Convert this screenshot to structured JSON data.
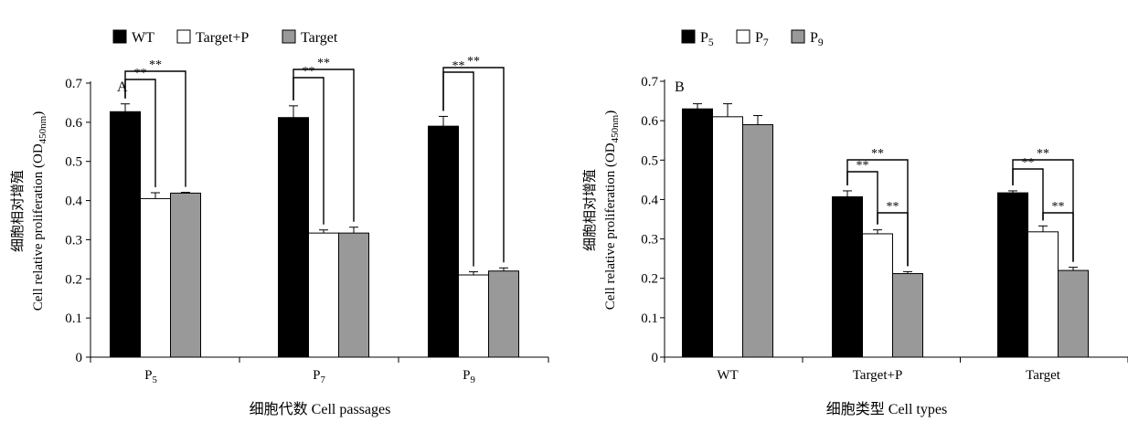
{
  "chart_data": [
    {
      "type": "bar",
      "panel_label": "A",
      "legend": [
        "WT",
        "Target+P",
        "Target"
      ],
      "categories": [
        {
          "base": "P",
          "sub": "5"
        },
        {
          "base": "P",
          "sub": "7"
        },
        {
          "base": "P",
          "sub": "9"
        }
      ],
      "series": [
        {
          "name": "WT",
          "color": "#000000",
          "values": [
            0.627,
            0.612,
            0.59
          ],
          "errors": [
            0.02,
            0.03,
            0.025
          ]
        },
        {
          "name": "Target+P",
          "color": "#ffffff",
          "values": [
            0.405,
            0.317,
            0.21
          ],
          "errors": [
            0.015,
            0.008,
            0.008
          ]
        },
        {
          "name": "Target",
          "color": "#999999",
          "values": [
            0.419,
            0.317,
            0.22
          ],
          "errors": [
            0.002,
            0.015,
            0.008
          ]
        }
      ],
      "ylabel_cn": "细胞相对增殖",
      "ylabel_en": "Cell relative proliferation (OD",
      "ylabel_sub": "450nm",
      "ylabel_end": ")",
      "xlabel": "细胞代数 Cell passages",
      "ylim": [
        0,
        0.7
      ],
      "yticks": [
        "0",
        "0.1",
        "0.2",
        "0.3",
        "0.4",
        "0.5",
        "0.6",
        "0.7"
      ],
      "significance": [
        {
          "category": 0,
          "from": 0,
          "to": 1,
          "label": "**"
        },
        {
          "category": 0,
          "from": 0,
          "to": 2,
          "label": "**"
        },
        {
          "category": 1,
          "from": 0,
          "to": 1,
          "label": "**"
        },
        {
          "category": 1,
          "from": 0,
          "to": 2,
          "label": "**"
        },
        {
          "category": 2,
          "from": 0,
          "to": 1,
          "label": "**"
        },
        {
          "category": 2,
          "from": 0,
          "to": 2,
          "label": "**"
        }
      ]
    },
    {
      "type": "bar",
      "panel_label": "B",
      "legend": [
        {
          "base": "P",
          "sub": "5"
        },
        {
          "base": "P",
          "sub": "7"
        },
        {
          "base": "P",
          "sub": "9"
        }
      ],
      "categories": [
        {
          "base": "WT",
          "sub": ""
        },
        {
          "base": "Target+P",
          "sub": ""
        },
        {
          "base": "Target",
          "sub": ""
        }
      ],
      "series": [
        {
          "name": "P5",
          "color": "#000000",
          "values": [
            0.63,
            0.407,
            0.417
          ],
          "errors": [
            0.013,
            0.015,
            0.005
          ]
        },
        {
          "name": "P7",
          "color": "#ffffff",
          "values": [
            0.61,
            0.313,
            0.318
          ],
          "errors": [
            0.033,
            0.01,
            0.015
          ]
        },
        {
          "name": "P9",
          "color": "#999999",
          "values": [
            0.59,
            0.212,
            0.22
          ],
          "errors": [
            0.023,
            0.005,
            0.008
          ]
        }
      ],
      "ylabel_cn": "细胞相对增殖",
      "ylabel_en": "Cell relative proliferation (OD",
      "ylabel_sub": "450nm",
      "ylabel_end": ")",
      "xlabel": "细胞类型 Cell types",
      "ylim": [
        0,
        0.7
      ],
      "yticks": [
        "0",
        "0.1",
        "0.2",
        "0.3",
        "0.4",
        "0.5",
        "0.6",
        "0.7"
      ],
      "significance": [
        {
          "category": 1,
          "from": 0,
          "to": 1,
          "label": "**"
        },
        {
          "category": 1,
          "from": 0,
          "to": 2,
          "label": "**"
        },
        {
          "category": 1,
          "from": 1,
          "to": 2,
          "label": "**"
        },
        {
          "category": 2,
          "from": 0,
          "to": 1,
          "label": "**"
        },
        {
          "category": 2,
          "from": 0,
          "to": 2,
          "label": "**"
        },
        {
          "category": 2,
          "from": 1,
          "to": 2,
          "label": "**"
        }
      ]
    }
  ]
}
